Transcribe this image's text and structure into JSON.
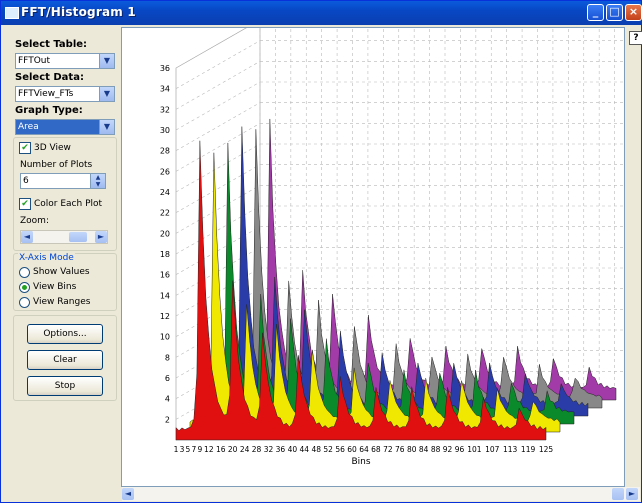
{
  "window": {
    "title": "FFT/Histogram 1",
    "help_label": "?",
    "controls": {
      "minimize": "_",
      "maximize": "□",
      "close": "×"
    }
  },
  "left": {
    "select_table_label": "Select Table:",
    "select_table_value": "FFTOut",
    "select_data_label": "Select Data:",
    "select_data_value": "FFTView_FTs",
    "graph_type_label": "Graph Type:",
    "graph_type_value": "Area",
    "view3d_label": "3D View",
    "view3d_checked": true,
    "num_plots_label": "Number of Plots",
    "num_plots_value": "6",
    "color_each_label": "Color Each Plot",
    "color_each_checked": true,
    "zoom_label": "Zoom:",
    "xaxis_group_label": "X-Axis Mode",
    "xaxis_options": [
      {
        "label": "Show Values",
        "selected": false
      },
      {
        "label": "View Bins",
        "selected": true
      },
      {
        "label": "View Ranges",
        "selected": false
      }
    ],
    "options_button": "Options...",
    "clear_button": "Clear",
    "stop_button": "Stop"
  },
  "chart_data": {
    "type": "area",
    "view": "3d",
    "xlabel": "Bins",
    "ylabel": "",
    "title": "",
    "ylim": [
      0,
      36
    ],
    "yticks": [
      2,
      4,
      6,
      8,
      10,
      12,
      14,
      16,
      18,
      20,
      22,
      24,
      26,
      28,
      30,
      32,
      34,
      36
    ],
    "xtick_labels": [
      "1",
      "3",
      "5",
      "7",
      "9",
      "12",
      "16",
      "20",
      "24",
      "28",
      "32",
      "36",
      "40",
      "44",
      "48",
      "52",
      "56",
      "60",
      "64",
      "68",
      "72",
      "76",
      "80",
      "84",
      "88",
      "92",
      "96",
      "101",
      "107",
      "113",
      "119",
      "125"
    ],
    "grid": true,
    "series_colors": [
      "#e01010",
      "#f0e800",
      "#0a8a2a",
      "#2a3ca8",
      "#888888",
      "#a23aa8"
    ],
    "peaks": [
      {
        "bin": 9,
        "heights": [
          28,
          26,
          26,
          27,
          26,
          26
        ]
      },
      {
        "bin": 20,
        "heights": [
          14,
          11,
          11,
          12,
          11,
          11
        ]
      },
      {
        "bin": 30,
        "heights": [
          9,
          9,
          9,
          9,
          9,
          9
        ]
      },
      {
        "bin": 42,
        "heights": [
          7,
          7,
          7,
          7,
          7,
          7
        ]
      },
      {
        "bin": 56,
        "heights": [
          5,
          5,
          5,
          5,
          5,
          5
        ]
      },
      {
        "bin": 68,
        "heights": [
          4,
          4,
          4,
          4,
          4,
          4
        ]
      },
      {
        "bin": 80,
        "heights": [
          4,
          4,
          4,
          4,
          4,
          4
        ]
      },
      {
        "bin": 92,
        "heights": [
          4,
          4,
          4,
          4,
          4,
          4
        ]
      },
      {
        "bin": 104,
        "heights": [
          3,
          3,
          3,
          3,
          3,
          3
        ]
      },
      {
        "bin": 116,
        "heights": [
          2,
          2,
          2,
          2,
          2,
          2
        ]
      }
    ]
  }
}
